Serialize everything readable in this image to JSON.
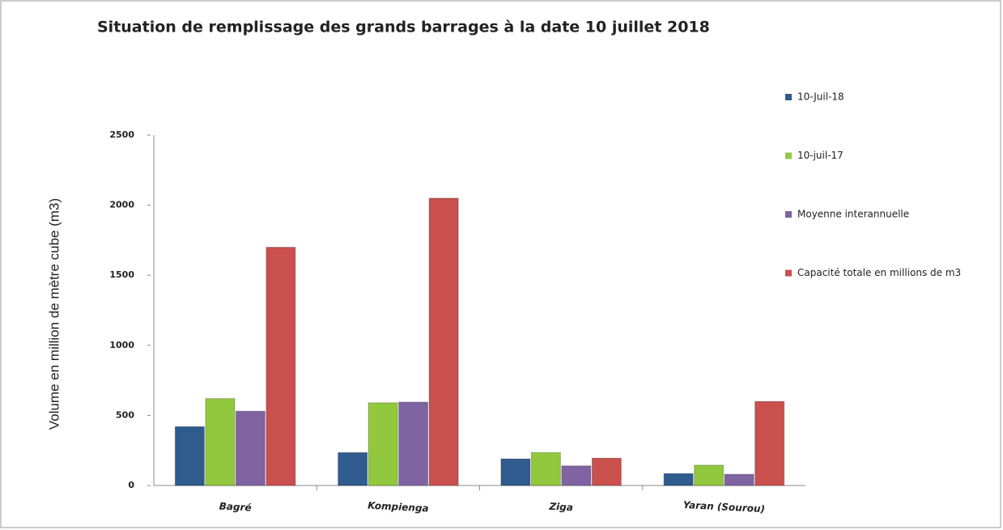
{
  "chart_data": {
    "type": "bar",
    "title": "Situation de remplissage des grands barrages à la date 10 juillet 2018",
    "y_label": "Volume en million de mètre cube (m3)",
    "categories": [
      "Bagré",
      "Kompienga",
      "Ziga",
      "Yaran (Sourou)"
    ],
    "series": [
      {
        "name": "10-Juil-18",
        "color": "#2f5b8e",
        "values": [
          420,
          235,
          190,
          85
        ]
      },
      {
        "name": "10-juil-17",
        "color": "#92c83e",
        "values": [
          620,
          590,
          235,
          145
        ]
      },
      {
        "name": "Moyenne interannuelle",
        "color": "#8064a2",
        "values": [
          530,
          595,
          140,
          80
        ]
      },
      {
        "name": "Capacité totale en millions de m3",
        "color": "#c9504d",
        "values": [
          1700,
          2050,
          195,
          600
        ]
      }
    ],
    "ylim": [
      0,
      2500
    ],
    "yticks": [
      0,
      500,
      1000,
      1500,
      2000,
      2500
    ],
    "legend": "right"
  }
}
